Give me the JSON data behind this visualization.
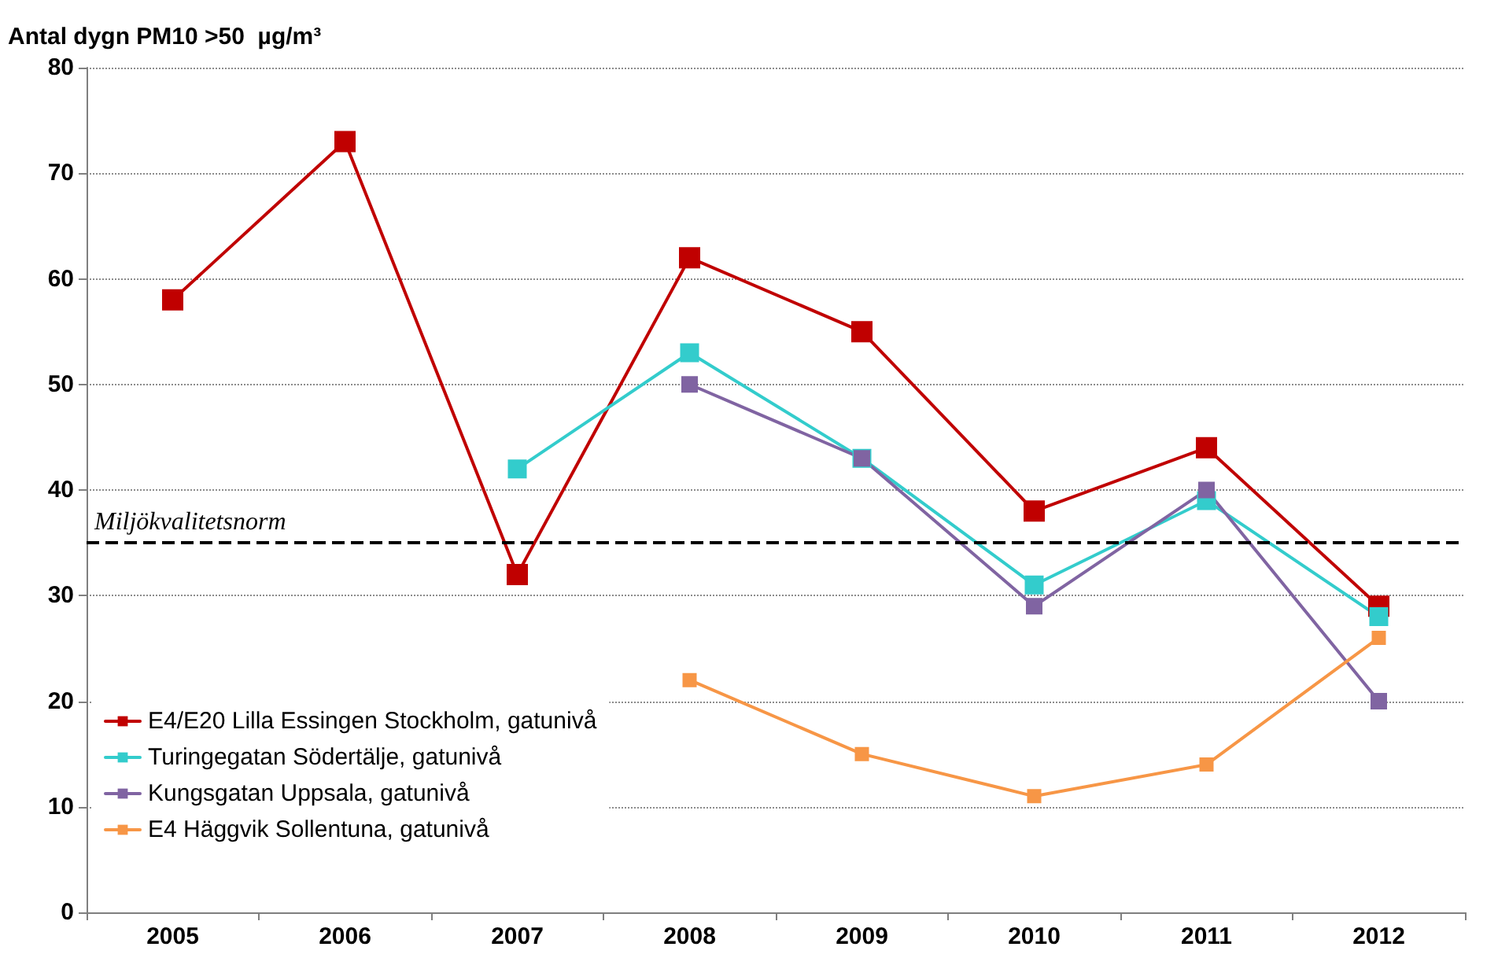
{
  "chart_data": {
    "type": "line",
    "ylabel": "Antal dygn PM10 >50  µg/m³",
    "categories": [
      "2005",
      "2006",
      "2007",
      "2008",
      "2009",
      "2010",
      "2011",
      "2012"
    ],
    "series": [
      {
        "name": "E4/E20 Lilla Essingen Stockholm, gatunivå",
        "color": "#c00000",
        "values": [
          58,
          73,
          32,
          62,
          55,
          38,
          44,
          29
        ]
      },
      {
        "name": "Turingegatan Södertälje, gatunivå",
        "color": "#33cccc",
        "values": [
          null,
          null,
          42,
          53,
          43,
          31,
          39,
          28
        ]
      },
      {
        "name": "Kungsgatan Uppsala, gatunivå",
        "color": "#8064a2",
        "values": [
          null,
          null,
          null,
          50,
          43,
          29,
          40,
          20
        ]
      },
      {
        "name": "E4 Häggvik Sollentuna, gatunivå",
        "color": "#f79646",
        "values": [
          null,
          null,
          null,
          22,
          15,
          11,
          14,
          26
        ]
      }
    ],
    "ylim": [
      0,
      80
    ],
    "yticks": [
      0,
      10,
      20,
      30,
      40,
      50,
      60,
      70,
      80
    ],
    "ref_lines": [
      {
        "axis": "y",
        "value": 35,
        "label": "Miljökvalitetsnorm",
        "color": "#000000",
        "line_style": "dashed"
      }
    ],
    "grid": "y",
    "legend": "left",
    "marker": "square",
    "line_style": "solid"
  }
}
